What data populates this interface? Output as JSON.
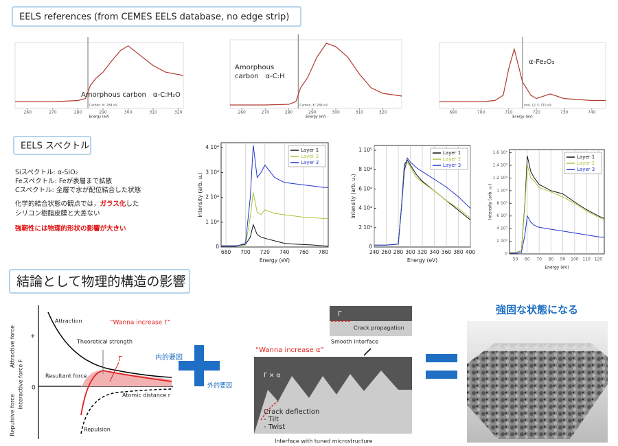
{
  "header": {
    "title": "EELS references (from CEMES EELS database, no edge strip)"
  },
  "references": [
    {
      "label": [
        "Amorphous carbon　α-C:H₂O"
      ],
      "note": "Carbon, K: 284 eV",
      "xlabel": "Energy (eV)",
      "edge": 284,
      "xlim": [
        255,
        322
      ],
      "ylim": [
        0,
        100
      ],
      "xticks": [
        260,
        270,
        280,
        290,
        300,
        310,
        320
      ],
      "series": [
        {
          "color": "#b03a30",
          "x": [
            255,
            270,
            280,
            283,
            285,
            287,
            290,
            293,
            297,
            300,
            305,
            310,
            315,
            322
          ],
          "values": [
            10,
            10,
            12,
            15,
            35,
            45,
            55,
            70,
            88,
            95,
            80,
            65,
            55,
            50
          ]
        }
      ]
    },
    {
      "label": [
        "Amorphous",
        "carbon　α-C:H"
      ],
      "note": "Carbon, K: 284 eV",
      "xlabel": "Energy (eV)",
      "edge": 284,
      "xlim": [
        255,
        328
      ],
      "ylim": [
        0,
        100
      ],
      "xticks": [
        260,
        270,
        280,
        290,
        300,
        310,
        320
      ],
      "series": [
        {
          "color": "#b03a30",
          "x": [
            255,
            270,
            280,
            283,
            285,
            288,
            292,
            296,
            300,
            305,
            310,
            315,
            320,
            328
          ],
          "values": [
            5,
            5,
            6,
            10,
            30,
            45,
            75,
            95,
            90,
            75,
            50,
            30,
            22,
            18
          ]
        }
      ]
    },
    {
      "label": [
        "α-Fe₂O₃"
      ],
      "note": "Iron, L2,3: 715 eV",
      "xlabel": "Energy (eV)",
      "edge": 715,
      "xlim": [
        685,
        745
      ],
      "ylim": [
        0,
        100
      ],
      "xticks": [
        690,
        700,
        710,
        720,
        730,
        740
      ],
      "series": [
        {
          "color": "#b03a30",
          "x": [
            685,
            700,
            705,
            708,
            710,
            712,
            715,
            718,
            720,
            725,
            730,
            740,
            745
          ],
          "values": [
            10,
            10,
            12,
            20,
            60,
            90,
            40,
            20,
            15,
            22,
            15,
            12,
            12
          ]
        }
      ]
    }
  ],
  "eels": {
    "title": "EELS スペクトル",
    "lines": [
      [
        {
          "text": "Siスペクトル: α-SiO₂"
        }
      ],
      [
        {
          "text": "Feスペクトル: Feが表層まで拡散"
        }
      ],
      [
        {
          "text": "Cスペクトル: 全層で水が配位結合した状態"
        }
      ],
      [
        {
          "text": "化学的結合状態の観点では，"
        },
        {
          "text": "ガラス化",
          "emphasis": true
        },
        {
          "text": "した"
        }
      ],
      [
        {
          "text": "シリコン樹脂皮膜と大差ない"
        }
      ],
      [
        {
          "text": "強靭性には物理的形状の影響が大きい",
          "emphasis": true
        }
      ]
    ],
    "charts": [
      {
        "xlabel": "Energy (eV)",
        "ylabel": "Intensity (arb. u.)",
        "grid": true,
        "xlim": [
          675,
          785
        ],
        "ylim": [
          0,
          42000
        ],
        "xticks": [
          680,
          700,
          720,
          740,
          760,
          780
        ],
        "yticks": [
          0,
          {
            "value": 10000,
            "label": "1 10⁴"
          },
          {
            "value": 20000,
            "label": "2 10⁴"
          },
          {
            "value": 30000,
            "label": "3 10⁴"
          },
          {
            "value": 40000,
            "label": "4 10⁴"
          }
        ],
        "x": [
          675,
          690,
          700,
          705,
          708,
          712,
          716,
          720,
          730,
          740,
          750,
          760,
          770,
          780,
          785
        ],
        "series": [
          {
            "name": "Layer 1",
            "color": "#111111",
            "values": [
              500,
              500,
              1000,
              4000,
              9000,
              5000,
              4000,
              3500,
              2500,
              1500,
              1200,
              1000,
              800,
              500,
              300
            ]
          },
          {
            "name": "Layer 2",
            "color": "#a8c43c",
            "values": [
              300,
              300,
              800,
              12000,
              22000,
              14000,
              13000,
              15000,
              13500,
              13000,
              12500,
              12000,
              11800,
              11500,
              11500
            ]
          },
          {
            "name": "Layer 3",
            "color": "#2233cc",
            "values": [
              300,
              300,
              1500,
              20000,
              41000,
              28000,
              30000,
              33000,
              28000,
              26000,
              25500,
              25000,
              24500,
              24000,
              24000
            ]
          }
        ]
      },
      {
        "xlabel": "Energy (eV)",
        "ylabel": "Intensity (arb. u.)",
        "grid": true,
        "xlim": [
          240,
          400
        ],
        "ylim": [
          0,
          105000
        ],
        "xticks": [
          240,
          260,
          280,
          300,
          320,
          340,
          360,
          380,
          400
        ],
        "yticks": [
          0,
          {
            "value": 20000,
            "label": "2 10⁴"
          },
          {
            "value": 40000,
            "label": "4 10⁴"
          },
          {
            "value": 60000,
            "label": "6 10⁴"
          },
          {
            "value": 80000,
            "label": "8 10⁴"
          },
          {
            "value": 100000,
            "label": "1 10⁵"
          }
        ],
        "x": [
          240,
          260,
          280,
          285,
          290,
          295,
          300,
          310,
          320,
          340,
          360,
          380,
          400
        ],
        "series": [
          {
            "name": "Layer 1",
            "color": "#111111",
            "values": [
              2000,
              2000,
              3000,
              40000,
              85000,
              90000,
              85000,
              75000,
              68000,
              58000,
              48000,
              38000,
              28000
            ]
          },
          {
            "name": "Layer 2",
            "color": "#a8c43c",
            "values": [
              2000,
              2000,
              3000,
              40000,
              80000,
              88000,
              83000,
              72000,
              67000,
              58000,
              48000,
              40000,
              30000
            ]
          },
          {
            "name": "Layer 3",
            "color": "#2233cc",
            "values": [
              2000,
              2000,
              3000,
              38000,
              78000,
              92000,
              88000,
              82000,
              78000,
              70000,
              62000,
              52000,
              40000
            ]
          }
        ]
      },
      {
        "xlabel": "Energy (eV)",
        "ylabel": "Intensity (arb. u.)",
        "grid": true,
        "xlim": [
          45,
          125
        ],
        "ylim": [
          0,
          1650000
        ],
        "xticks": [
          50,
          60,
          70,
          80,
          90,
          100,
          110,
          120
        ],
        "yticks": [
          0,
          {
            "value": 200000,
            "label": "2 10⁵"
          },
          {
            "value": 400000,
            "label": "4 10⁵"
          },
          {
            "value": 600000,
            "label": "6 10⁵"
          },
          {
            "value": 800000,
            "label": "8 10⁵"
          },
          {
            "value": 1000000,
            "label": "1 10⁶"
          },
          {
            "value": 1200000,
            "label": "1.2 10⁶"
          },
          {
            "value": 1400000,
            "label": "1.4 10⁶"
          },
          {
            "value": 1600000,
            "label": "1.6 10⁶"
          }
        ],
        "x": [
          45,
          50,
          55,
          58,
          60,
          63,
          66,
          70,
          80,
          90,
          100,
          110,
          120,
          125
        ],
        "series": [
          {
            "name": "Layer 1",
            "color": "#111111",
            "values": [
              20000,
              20000,
              50000,
              800000,
              1550000,
              1300000,
              1200000,
              1100000,
              1000000,
              950000,
              820000,
              700000,
              600000,
              560000
            ]
          },
          {
            "name": "Layer 2",
            "color": "#a8c43c",
            "values": [
              20000,
              20000,
              50000,
              750000,
              1400000,
              1200000,
              1150000,
              1050000,
              980000,
              900000,
              800000,
              680000,
              580000,
              540000
            ]
          },
          {
            "name": "Layer 3",
            "color": "#2233cc",
            "values": [
              10000,
              10000,
              20000,
              300000,
              600000,
              500000,
              450000,
              420000,
              390000,
              360000,
              330000,
              300000,
              270000,
              260000
            ]
          }
        ]
      }
    ]
  },
  "conclusion": {
    "title": "結論として物理的構造の影響",
    "force": {
      "y_attractive": "Attractive force",
      "y_axis": "Interactive force F",
      "y_repulsive": "Repulsive force",
      "plus": "+",
      "zero": "0",
      "attraction": "Attraction",
      "wanna": "“Wanna increase Γ”",
      "theoretical": "Theoretical strength",
      "gamma": "Γ",
      "resultant": "Resultant force",
      "distance": "Atomic distance r",
      "repulsion": "Repulsion"
    },
    "internal": "内的要因",
    "external": "外的要因",
    "crack": {
      "gamma": "Γ",
      "propagation": "Crack propagation",
      "smooth": "Smooth interface",
      "wanna": "“Wanna increase α”",
      "gamma_alpha": "Γ × α",
      "deflection": "Crack deflection",
      "tilt": "- Tilt",
      "twist": "- Twist",
      "interface": "Interface with tuned microstructure"
    },
    "result": "強固な状態になる"
  }
}
